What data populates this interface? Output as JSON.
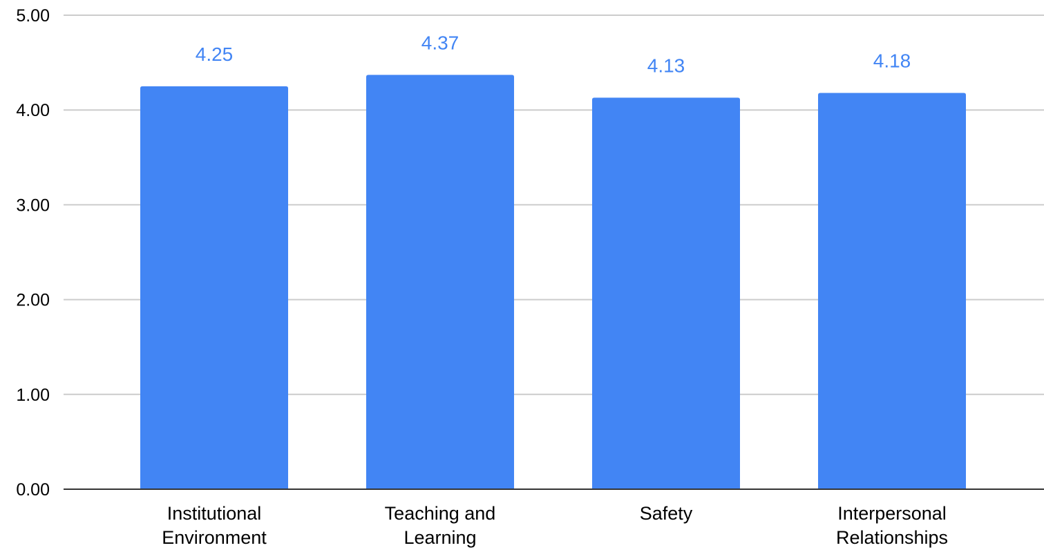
{
  "chart_data": {
    "type": "bar",
    "categories": [
      [
        "Institutional",
        "Environment"
      ],
      [
        "Teaching and",
        "Learning"
      ],
      [
        "Safety"
      ],
      [
        "Interpersonal",
        "Relationships"
      ]
    ],
    "values": [
      4.25,
      4.37,
      4.13,
      4.18
    ],
    "data_labels": [
      "4.25",
      "4.37",
      "4.13",
      "4.18"
    ],
    "title": "",
    "xlabel": "",
    "ylabel": "",
    "ylim": [
      0,
      5
    ],
    "yticks": [
      {
        "value": 0,
        "label": "0.00"
      },
      {
        "value": 1,
        "label": "1.00"
      },
      {
        "value": 2,
        "label": "2.00"
      },
      {
        "value": 3,
        "label": "3.00"
      },
      {
        "value": 4,
        "label": "4.00"
      },
      {
        "value": 5,
        "label": "5.00"
      }
    ],
    "grid": true,
    "legend": "none",
    "colors": {
      "bar": "#4285f4",
      "data_label": "#4285f4",
      "gridline": "#cccccc",
      "axis": "#333333"
    }
  }
}
